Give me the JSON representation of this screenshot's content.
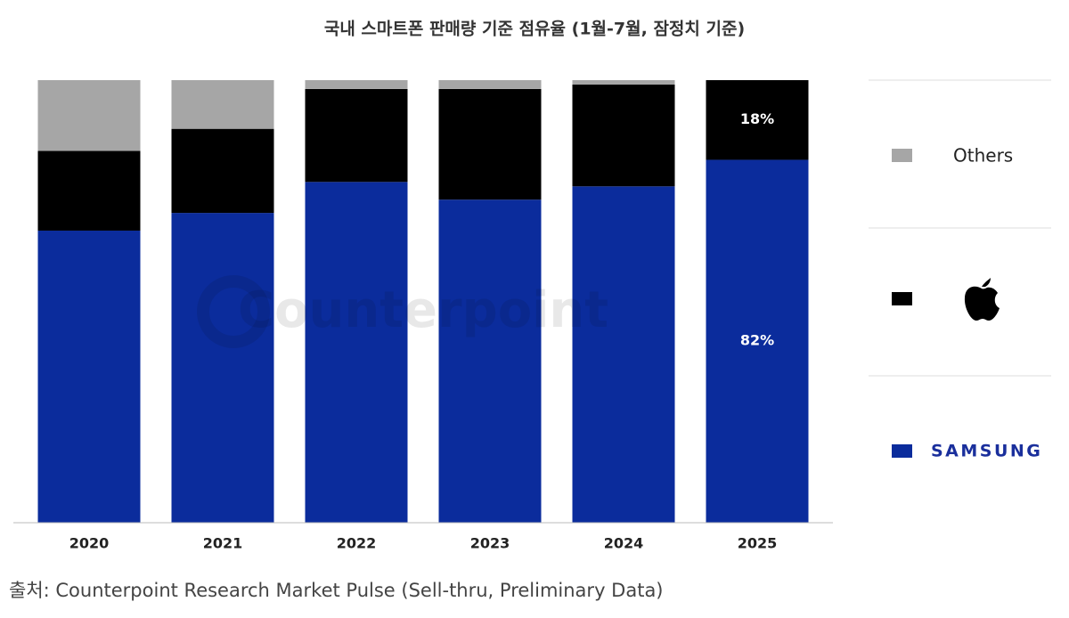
{
  "chart_data": {
    "type": "stacked_bar",
    "title": "국내 스마트폰 판매량 기준 점유율 (1월-7월, 잠정치 기준)",
    "watermark": "Counterpoint",
    "source": "출처: Counterpoint Research Market Pulse (Sell-thru, Preliminary Data)",
    "categories": [
      "2020",
      "2021",
      "2022",
      "2023",
      "2024",
      "2025"
    ],
    "ylim": [
      0,
      100
    ],
    "series": [
      {
        "name": "SAMSUNG",
        "color": "#0b2c9c",
        "values": [
          66,
          70,
          77,
          73,
          76,
          82
        ],
        "value_labels": [
          null,
          null,
          null,
          null,
          null,
          "82%"
        ]
      },
      {
        "color": "#000000",
        "values": [
          18,
          19,
          21,
          25,
          23,
          18
        ],
        "value_labels": [
          null,
          null,
          null,
          null,
          null,
          "18%"
        ]
      },
      {
        "name": "Others",
        "color": "#a6a6a6",
        "values": [
          16,
          11,
          2,
          2,
          1,
          0
        ]
      }
    ]
  }
}
